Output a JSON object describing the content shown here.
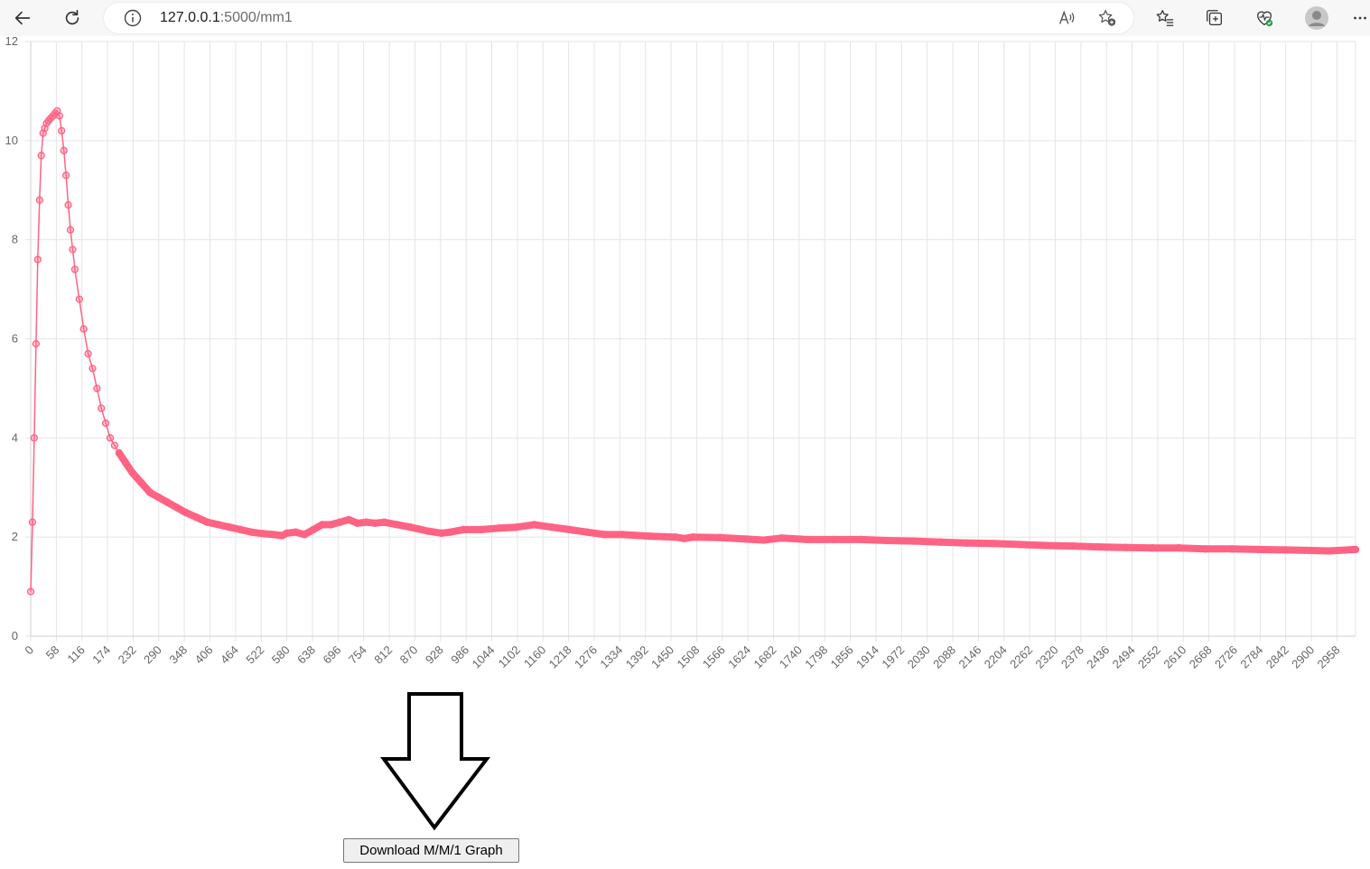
{
  "browser": {
    "url_host": "127.0.0.1",
    "url_path": ":5000/mm1",
    "icons": [
      "back-icon",
      "refresh-icon",
      "info-icon",
      "read-aloud-icon",
      "add-favorite-icon",
      "favorites-icon",
      "collections-icon",
      "browser-essentials-icon",
      "profile-icon",
      "more-icon"
    ]
  },
  "chart_data": {
    "type": "line",
    "title": "",
    "xlabel": "",
    "ylabel": "",
    "xlim": [
      0,
      3000
    ],
    "ylim": [
      0,
      12
    ],
    "yticks": [
      0,
      2,
      4,
      6,
      8,
      10,
      12
    ],
    "xticks": [
      0,
      58,
      116,
      174,
      232,
      290,
      348,
      406,
      464,
      522,
      580,
      638,
      696,
      754,
      812,
      870,
      928,
      986,
      1044,
      1102,
      1160,
      1218,
      1276,
      1334,
      1392,
      1450,
      1508,
      1566,
      1624,
      1682,
      1740,
      1798,
      1856,
      1914,
      1972,
      2030,
      2088,
      2146,
      2204,
      2262,
      2320,
      2378,
      2436,
      2494,
      2552,
      2610,
      2668,
      2726,
      2784,
      2842,
      2900,
      2958
    ],
    "grid": true,
    "legend": "none",
    "series_color": "#ff6384",
    "series": [
      {
        "x": [
          0,
          4,
          8,
          12,
          16,
          20,
          24,
          28,
          32,
          36,
          40,
          45,
          50,
          55,
          60,
          65,
          70,
          75,
          80,
          85,
          90,
          95,
          100,
          110,
          120,
          130,
          140,
          150,
          160,
          170,
          180,
          190,
          200,
          215,
          230,
          250,
          270,
          290,
          310,
          330,
          350,
          375,
          400,
          425,
          450,
          475,
          500,
          525,
          550,
          570,
          580,
          600,
          620,
          640,
          660,
          680,
          700,
          720,
          740,
          760,
          780,
          800,
          830,
          860,
          900,
          930,
          950,
          980,
          1020,
          1060,
          1100,
          1140,
          1180,
          1220,
          1260,
          1300,
          1340,
          1400,
          1460,
          1480,
          1500,
          1560,
          1620,
          1660,
          1700,
          1760,
          1820,
          1880,
          1940,
          2000,
          2060,
          2120,
          2180,
          2240,
          2300,
          2360,
          2420,
          2480,
          2540,
          2600,
          2660,
          2720,
          2780,
          2840,
          2900,
          2940,
          2960,
          3000
        ],
        "y": [
          0.9,
          2.3,
          4.0,
          5.9,
          7.6,
          8.8,
          9.7,
          10.15,
          10.25,
          10.35,
          10.4,
          10.45,
          10.5,
          10.55,
          10.6,
          10.5,
          10.2,
          9.8,
          9.3,
          8.7,
          8.2,
          7.8,
          7.4,
          6.8,
          6.2,
          5.7,
          5.4,
          5.0,
          4.6,
          4.3,
          4.0,
          3.85,
          3.7,
          3.5,
          3.3,
          3.1,
          2.9,
          2.8,
          2.7,
          2.6,
          2.5,
          2.4,
          2.3,
          2.25,
          2.2,
          2.15,
          2.1,
          2.07,
          2.05,
          2.03,
          2.08,
          2.1,
          2.05,
          2.15,
          2.25,
          2.25,
          2.3,
          2.35,
          2.28,
          2.3,
          2.28,
          2.3,
          2.25,
          2.2,
          2.12,
          2.08,
          2.1,
          2.15,
          2.15,
          2.18,
          2.2,
          2.25,
          2.2,
          2.15,
          2.1,
          2.05,
          2.05,
          2.02,
          2.0,
          1.97,
          2.0,
          1.99,
          1.96,
          1.94,
          1.98,
          1.95,
          1.95,
          1.95,
          1.93,
          1.92,
          1.9,
          1.88,
          1.87,
          1.85,
          1.83,
          1.82,
          1.8,
          1.79,
          1.78,
          1.78,
          1.76,
          1.76,
          1.75,
          1.74,
          1.73,
          1.72,
          1.73,
          1.75
        ]
      }
    ]
  },
  "download": {
    "button_label": "Download M/M/1 Graph"
  }
}
